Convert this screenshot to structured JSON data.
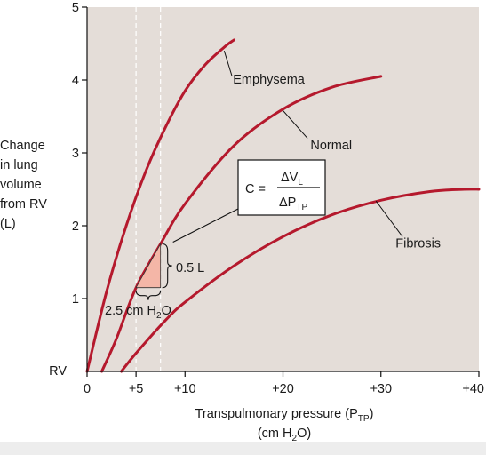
{
  "chart_data": {
    "type": "line",
    "xlabel_main": "Transpulmonary pressure (P",
    "xlabel_sub": "TP",
    "xlabel_end": ")",
    "xlabel_line2_a": "(cm H",
    "xlabel_line2_sub": "2",
    "xlabel_line2_b": "O)",
    "ylabel_lines": [
      "Change",
      "in lung",
      "volume",
      "from RV",
      "(L)"
    ],
    "xlim": [
      0,
      40
    ],
    "ylim": [
      0,
      5
    ],
    "x_ticks": [
      {
        "value": 0,
        "label": "0"
      },
      {
        "value": 5,
        "label": "+5"
      },
      {
        "value": 10,
        "label": "+10"
      },
      {
        "value": 20,
        "label": "+20"
      },
      {
        "value": 30,
        "label": "+30"
      },
      {
        "value": 40,
        "label": "+40"
      }
    ],
    "y_ticks": [
      {
        "value": 1,
        "label": "1"
      },
      {
        "value": 2,
        "label": "2"
      },
      {
        "value": 3,
        "label": "3"
      },
      {
        "value": 4,
        "label": "4"
      },
      {
        "value": 5,
        "label": "5"
      }
    ],
    "y_origin_label": "RV",
    "vertical_guides": [
      5,
      7.5
    ],
    "series": [
      {
        "name": "Emphysema",
        "color": "#b5192d",
        "x": [
          0,
          2,
          4,
          6,
          8,
          10,
          12,
          14,
          15
        ],
        "y": [
          0,
          1.1,
          2.0,
          2.75,
          3.35,
          3.85,
          4.2,
          4.45,
          4.55
        ]
      },
      {
        "name": "Normal",
        "color": "#b5192d",
        "x": [
          1.5,
          3,
          5,
          7.5,
          10,
          15,
          20,
          25,
          30
        ],
        "y": [
          0,
          0.45,
          1.15,
          1.75,
          2.3,
          3.1,
          3.6,
          3.9,
          4.05
        ]
      },
      {
        "name": "Fibrosis",
        "color": "#b5192d",
        "x": [
          3.5,
          5,
          8,
          10,
          15,
          20,
          25,
          30,
          35,
          38.5,
          40
        ],
        "y": [
          0,
          0.25,
          0.7,
          0.95,
          1.45,
          1.85,
          2.15,
          2.35,
          2.47,
          2.5,
          2.5
        ]
      }
    ],
    "curve_labels": [
      {
        "text": "Emphysema",
        "x": 14.9,
        "y": 3.95,
        "lx1": 14.0,
        "ly1": 4.4,
        "lx2": 14.8,
        "ly2": 4.05
      },
      {
        "text": "Normal",
        "x": 22.8,
        "y": 3.05,
        "lx1": 20.0,
        "ly1": 3.58,
        "lx2": 22.5,
        "ly2": 3.2
      },
      {
        "text": "Fibrosis",
        "x": 31.5,
        "y": 1.7,
        "lx1": 29.5,
        "ly1": 2.34,
        "lx2": 32.2,
        "ly2": 1.85
      }
    ],
    "annotation": {
      "triangle": [
        [
          5,
          1.15
        ],
        [
          7.5,
          1.15
        ],
        [
          7.5,
          1.75
        ]
      ],
      "fill": "#f4b6a7",
      "volume_label": "0.5 L",
      "pressure_label_a": "2.5 cm H",
      "pressure_label_sub": "2",
      "pressure_label_b": "O",
      "compliance_c": "C =",
      "compliance_num": "ΔV",
      "compliance_num_sub": "L",
      "compliance_den": "ΔP",
      "compliance_den_sub": "TP"
    },
    "colors": {
      "plot_bg": "#e4ddd8",
      "curve": "#b5192d",
      "grid_dash": "#ffffff"
    }
  }
}
